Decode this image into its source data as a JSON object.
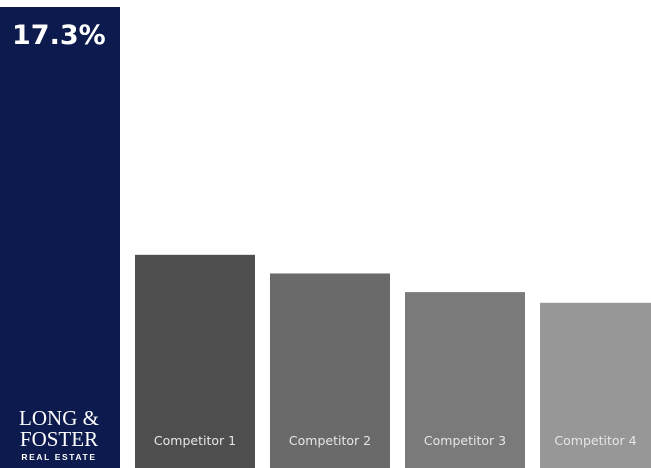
{
  "chart_data": {
    "type": "bar",
    "categories": [
      "LONG & FOSTER REAL ESTATE",
      "Competitor 1",
      "Competitor 2",
      "Competitor 3",
      "Competitor 4"
    ],
    "values": [
      17.3,
      8.0,
      7.3,
      6.6,
      6.2
    ],
    "data_labels": [
      "17.3%",
      "",
      "",
      "",
      ""
    ],
    "colors": [
      "#0d1a4d",
      "#4e4e4e",
      "#6a6a6a",
      "#7a7a7a",
      "#979797"
    ],
    "title": "",
    "xlabel": "",
    "ylabel": "",
    "ylim": [
      0,
      17.3
    ],
    "grid": false,
    "legend": "none"
  },
  "logo": {
    "line1": "LONG &",
    "line2": "FOSTER",
    "line3": "REAL ESTATE"
  }
}
